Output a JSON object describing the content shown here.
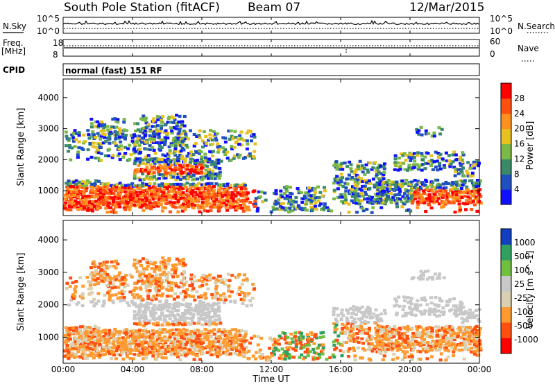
{
  "header": {
    "title": "South Pole Station (fitACF)",
    "beam": "Beam 07",
    "date": "12/Mar/2015"
  },
  "panels": {
    "nsky_label": "N.Sky",
    "nsearch_label": "N.Search",
    "noise_ticks": [
      "10^5",
      "10^0"
    ],
    "freq_label": "Freq.",
    "freq_unit": "[MHz]",
    "freq_ticks": [
      "18",
      "8"
    ],
    "nave_label": "Nave",
    "nave_ticks": [
      "60",
      "0"
    ],
    "cpid_label": "CPID",
    "cpid_value": "normal (fast) 151 RF"
  },
  "colors": {
    "power_scale": [
      "#1010ff",
      "#2050c0",
      "#3a8a6a",
      "#7ab848",
      "#e8c020",
      "#ff9020",
      "#ff5010",
      "#ff0000"
    ],
    "velocity_scale": [
      "#ff0000",
      "#ff5010",
      "#ff9a30",
      "#d8d0b0",
      "#c8c8c8",
      "#70c040",
      "#30a060",
      "#1040c0"
    ]
  },
  "chart_data": [
    {
      "type": "heatmap",
      "name": "power",
      "ylabel": "Slant Range [km]",
      "y_ticks": [
        "1000",
        "2000",
        "3000",
        "4000"
      ],
      "ylim": [
        200,
        4600
      ],
      "colorbar_label": "Power [dB]",
      "colorbar_ticks": [
        "4",
        "8",
        "12",
        "16",
        "20",
        "24",
        "28"
      ],
      "clim": [
        0,
        32
      ],
      "x_ticks": [
        "00:00",
        "04:00",
        "08:00",
        "12:00",
        "16:00",
        "20:00",
        "00:00"
      ],
      "xlim": [
        0,
        24
      ]
    },
    {
      "type": "heatmap",
      "name": "velocity",
      "ylabel": "Slant Range [km]",
      "y_ticks": [
        "1000",
        "2000",
        "3000",
        "4000"
      ],
      "ylim": [
        200,
        4600
      ],
      "colorbar_label": "Velocity [m s^-1]",
      "colorbar_ticks": [
        "-1000",
        "-500",
        "-100",
        "-25",
        "25",
        "100",
        "500",
        "1000"
      ],
      "x_ticks": [
        "00:00",
        "04:00",
        "08:00",
        "12:00",
        "16:00",
        "20:00",
        "00:00"
      ],
      "xlim": [
        0,
        24
      ],
      "xlabel": "Time UT"
    }
  ]
}
